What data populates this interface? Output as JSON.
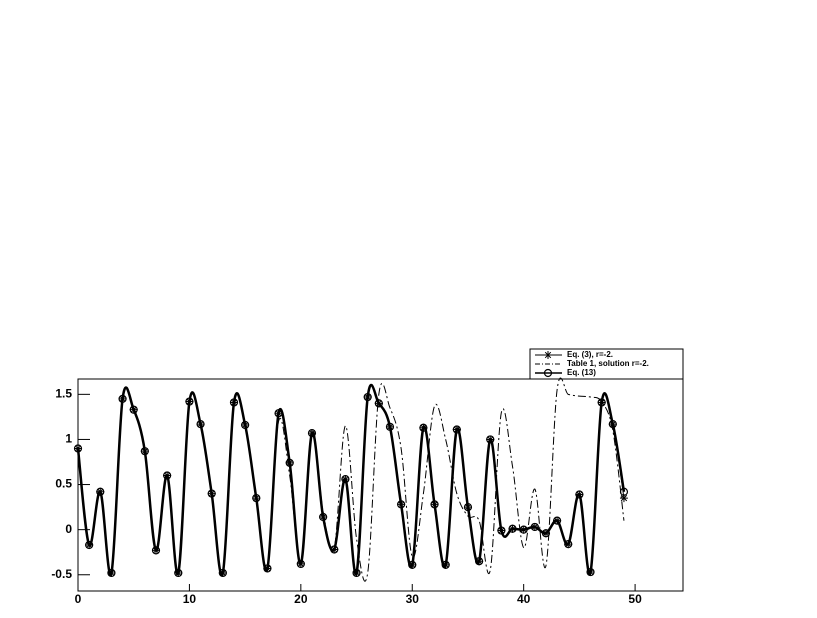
{
  "chart_data": {
    "type": "line",
    "xlim": [
      0,
      54.3
    ],
    "ylim": [
      -0.68,
      1.67
    ],
    "xticks": [
      0,
      10,
      20,
      30,
      40,
      50
    ],
    "yticks": [
      -0.5,
      0,
      0.5,
      1,
      1.5
    ],
    "legend": "top-right",
    "series": [
      {
        "name": "Eq. (3), r=-2.",
        "color": "#000000",
        "marker": "star",
        "line_style": "solid",
        "line_width": 1,
        "x": [
          0,
          1,
          2,
          3,
          4,
          5,
          6,
          7,
          8,
          9,
          10,
          11,
          12,
          13,
          14,
          15,
          16,
          17,
          18,
          19,
          20,
          21,
          22,
          23,
          24,
          25,
          26,
          27,
          28,
          29,
          30,
          31,
          32,
          33,
          34,
          35,
          36,
          37,
          38,
          39,
          40,
          41,
          42,
          43,
          44,
          45,
          46,
          47,
          48,
          49
        ],
        "values": [
          0.9,
          -0.17,
          0.42,
          -0.48,
          1.45,
          1.33,
          0.87,
          -0.23,
          0.6,
          -0.48,
          1.42,
          1.17,
          0.4,
          -0.48,
          1.41,
          1.16,
          0.35,
          -0.43,
          1.29,
          0.74,
          -0.38,
          1.07,
          0.14,
          -0.22,
          0.56,
          -0.48,
          1.47,
          1.4,
          1.14,
          0.28,
          -0.39,
          1.13,
          0.28,
          -0.39,
          1.11,
          0.25,
          -0.35,
          1.0,
          -0.01,
          0.01,
          0.0,
          0.03,
          -0.04,
          0.1,
          -0.16,
          0.39,
          -0.47,
          1.41,
          1.17,
          0.35
        ]
      },
      {
        "name": "Table 1, solution r=-2.",
        "color": "#000000",
        "marker": "none",
        "line_style": "dashdot",
        "line_width": 1,
        "x": [
          0,
          1,
          2,
          3,
          4,
          5,
          6,
          7,
          8,
          9,
          10,
          11,
          12,
          13,
          14,
          15,
          16,
          17,
          18,
          19,
          20,
          21,
          22,
          23,
          24,
          25,
          26,
          27,
          28,
          29,
          30,
          31,
          32,
          33,
          34,
          35,
          36,
          37,
          38,
          39,
          40,
          41,
          42,
          43,
          44,
          45,
          46,
          47,
          48,
          49
        ],
        "values": [
          0.9,
          -0.17,
          0.42,
          -0.48,
          1.45,
          1.33,
          0.87,
          -0.23,
          0.6,
          -0.48,
          1.42,
          1.17,
          0.4,
          -0.48,
          1.41,
          1.16,
          0.35,
          -0.43,
          1.2,
          0.6,
          -0.35,
          1.1,
          0.2,
          -0.2,
          1.15,
          -0.1,
          -0.48,
          1.5,
          1.35,
          0.9,
          -0.3,
          0.4,
          1.37,
          1.0,
          0.4,
          0.15,
          0.1,
          -0.45,
          1.3,
          0.7,
          -0.2,
          0.45,
          -0.4,
          1.55,
          1.5,
          1.48,
          1.47,
          1.42,
          1.1,
          0.1
        ]
      },
      {
        "name": "Eq. (13)",
        "color": "#000000",
        "marker": "circle",
        "line_style": "solid",
        "line_width": 2.5,
        "x": [
          0,
          1,
          2,
          3,
          4,
          5,
          6,
          7,
          8,
          9,
          10,
          11,
          12,
          13,
          14,
          15,
          16,
          17,
          18,
          19,
          20,
          21,
          22,
          23,
          24,
          25,
          26,
          27,
          28,
          29,
          30,
          31,
          32,
          33,
          34,
          35,
          36,
          37,
          38,
          39,
          40,
          41,
          42,
          43,
          44,
          45,
          46,
          47,
          48,
          49
        ],
        "values": [
          0.9,
          -0.17,
          0.42,
          -0.48,
          1.45,
          1.33,
          0.87,
          -0.23,
          0.6,
          -0.48,
          1.42,
          1.17,
          0.4,
          -0.48,
          1.41,
          1.16,
          0.35,
          -0.43,
          1.29,
          0.74,
          -0.38,
          1.07,
          0.14,
          -0.22,
          0.56,
          -0.48,
          1.47,
          1.4,
          1.14,
          0.28,
          -0.39,
          1.13,
          0.28,
          -0.39,
          1.11,
          0.25,
          -0.35,
          1.0,
          -0.01,
          0.01,
          0.0,
          0.03,
          -0.04,
          0.1,
          -0.16,
          0.39,
          -0.47,
          1.41,
          1.17,
          0.42
        ]
      }
    ]
  }
}
